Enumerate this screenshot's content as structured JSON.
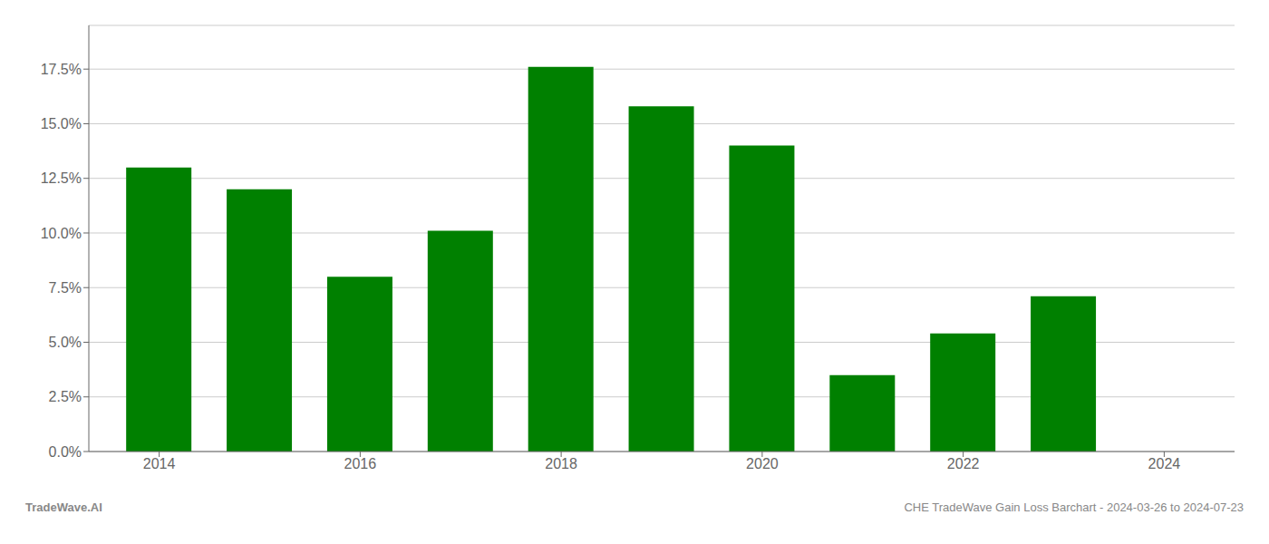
{
  "chart_data": {
    "type": "bar",
    "x": [
      2014,
      2015,
      2016,
      2017,
      2018,
      2019,
      2020,
      2021,
      2022,
      2023
    ],
    "values": [
      0.13,
      0.12,
      0.08,
      0.101,
      0.176,
      0.158,
      0.14,
      0.035,
      0.054,
      0.071
    ],
    "color": "#008000",
    "xlim": [
      2013.3,
      2024.7
    ],
    "xticks": [
      2014,
      2016,
      2018,
      2020,
      2022,
      2024
    ],
    "ylim": [
      0,
      0.195
    ],
    "yticks": [
      {
        "value": 0.0,
        "label": "0.0%"
      },
      {
        "value": 0.025,
        "label": "2.5%"
      },
      {
        "value": 0.05,
        "label": "5.0%"
      },
      {
        "value": 0.075,
        "label": "7.5%"
      },
      {
        "value": 0.1,
        "label": "10.0%"
      },
      {
        "value": 0.125,
        "label": "12.5%"
      },
      {
        "value": 0.15,
        "label": "15.0%"
      },
      {
        "value": 0.175,
        "label": "17.5%"
      }
    ],
    "grid": true,
    "annotations": [
      "TradeWave.AI",
      "CHE TradeWave Gain Loss Barchart - 2024-03-26 to 2024-07-23"
    ]
  }
}
